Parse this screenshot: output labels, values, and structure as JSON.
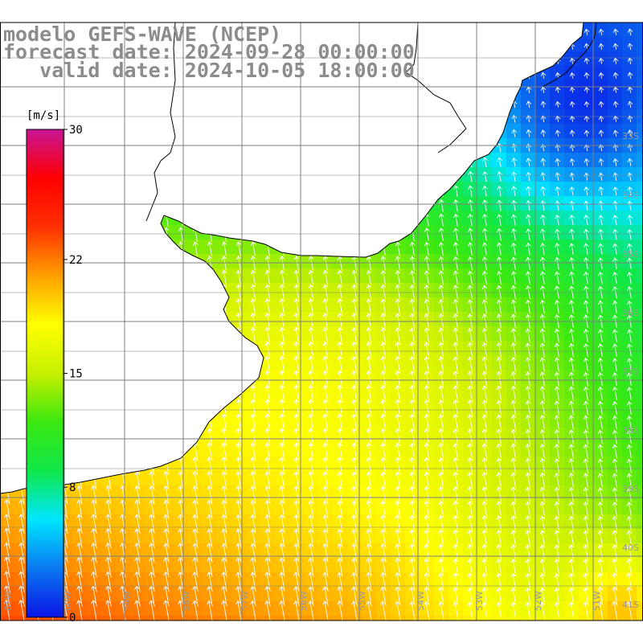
{
  "titles": {
    "model": "modelo GEFS-WAVE (NCEP)",
    "forecast": "forecast date: 2024-09-28 00:00:00",
    "valid": "   valid date: 2024-10-05 18:00:00"
  },
  "colorbar": {
    "unit": "[m/s]",
    "ticks": [
      {
        "label": "30",
        "value": 30
      },
      {
        "label": "22",
        "value": 22
      },
      {
        "label": "15",
        "value": 15
      },
      {
        "label": "8",
        "value": 8
      },
      {
        "label": "0",
        "value": 0
      }
    ],
    "min": 0,
    "max": 30,
    "colors": [
      "#0a14e6",
      "#0a78f0",
      "#00e6ff",
      "#10e84a",
      "#3be810",
      "#c8f000",
      "#ffff00",
      "#ffa000",
      "#ff3000",
      "#ff0000",
      "#c81496"
    ]
  },
  "map": {
    "lat_labels": [
      "33S",
      "34S",
      "35S",
      "36S",
      "37S",
      "38S",
      "39S",
      "40S",
      "41S"
    ],
    "lon_labels": [
      "61W",
      "60W",
      "59W",
      "58W",
      "57W",
      "56W",
      "55W",
      "54W",
      "53W",
      "52W",
      "51W"
    ],
    "wind_direction": "from south-southwest",
    "grid_color": "#7f7f7f",
    "land_color": "#ffffff",
    "coast_color": "#000000"
  }
}
